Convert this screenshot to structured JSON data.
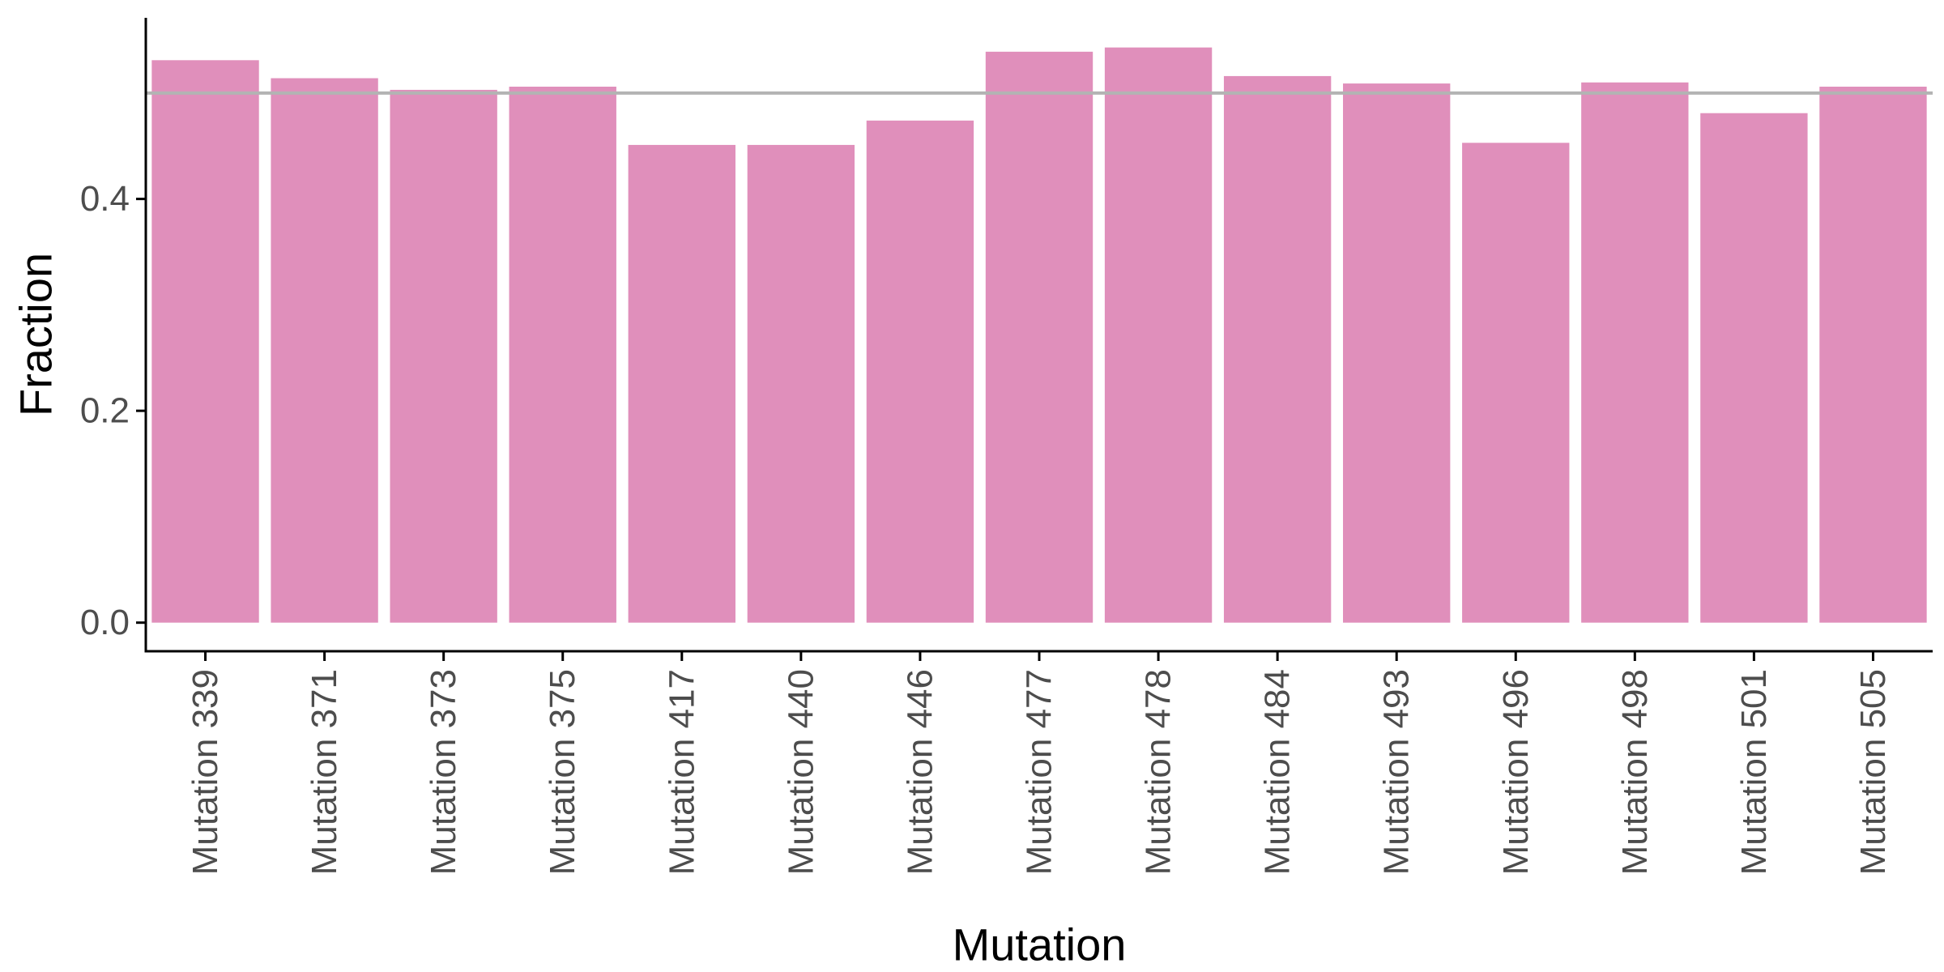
{
  "chart_data": {
    "type": "bar",
    "xlabel": "Mutation",
    "ylabel": "Fraction",
    "categories": [
      "Mutation 339",
      "Mutation 371",
      "Mutation 373",
      "Mutation 375",
      "Mutation 417",
      "Mutation 440",
      "Mutation 446",
      "Mutation 477",
      "Mutation 478",
      "Mutation 484",
      "Mutation 493",
      "Mutation 496",
      "Mutation 498",
      "Mutation 501",
      "Mutation 505"
    ],
    "values": [
      0.531,
      0.514,
      0.503,
      0.506,
      0.451,
      0.451,
      0.474,
      0.539,
      0.543,
      0.516,
      0.509,
      0.453,
      0.51,
      0.481,
      0.506
    ],
    "ylim": [
      -0.027,
      0.571
    ],
    "yticks": [
      0.0,
      0.2,
      0.4
    ],
    "ytick_labels": [
      "0.0",
      "0.2",
      "0.4"
    ],
    "reference_line": 0.5,
    "grid": false,
    "legend": "none",
    "colors": {
      "bar": "#e08fbb",
      "reference_line": "#b3b3b3",
      "axis": "#000000",
      "tick_text": "#4d4d4d",
      "title_text": "#000000"
    }
  }
}
